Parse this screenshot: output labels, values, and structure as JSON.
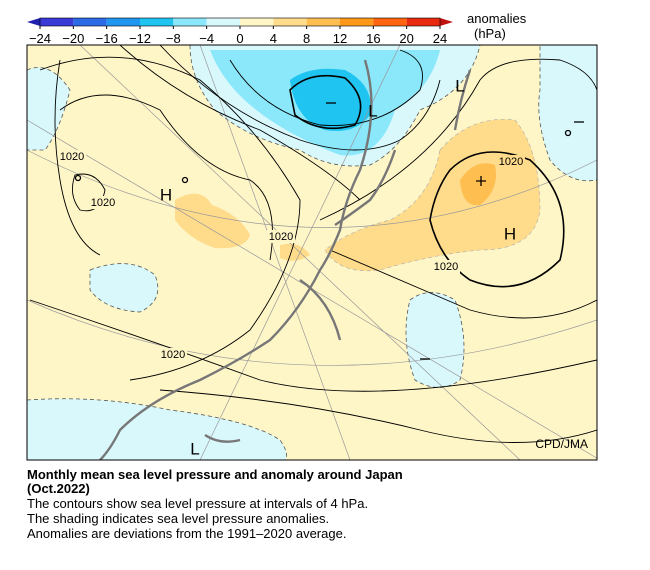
{
  "colorbar": {
    "title": "anomalies",
    "unit": "(hPa)",
    "ticks": [
      {
        "value": -24,
        "label": "−24"
      },
      {
        "value": -20,
        "label": "−20"
      },
      {
        "value": -16,
        "label": "−16"
      },
      {
        "value": -12,
        "label": "−12"
      },
      {
        "value": -8,
        "label": "−8"
      },
      {
        "value": -4,
        "label": "−4"
      },
      0,
      4,
      8,
      12,
      16,
      20,
      24
    ],
    "colors": [
      "#3a3ad6",
      "#2a6ae6",
      "#1f96f0",
      "#20c4f0",
      "#8ae8fa",
      "#d8f8fc",
      "#fff6c8",
      "#ffdc8c",
      "#ffbe50",
      "#ff9818",
      "#ff6410",
      "#e82a10"
    ],
    "low_color": "#2020b0",
    "high_color": "#c01010"
  },
  "map": {
    "contour_labels": [
      "1020",
      "1020",
      "1020",
      "1020",
      "1020",
      "1020"
    ],
    "centers": [
      "H",
      "H",
      "L",
      "L",
      "L"
    ],
    "credit": "CPD/JMA"
  },
  "caption": {
    "title": "Monthly mean sea level pressure and anomaly around Japan",
    "period": "(Oct.2022)",
    "lines": [
      "The contours show sea level pressure at intervals of 4 hPa.",
      "The shading indicates sea level pressure anomalies.",
      "Anomalies are deviations from the 1991–2020 average."
    ]
  }
}
